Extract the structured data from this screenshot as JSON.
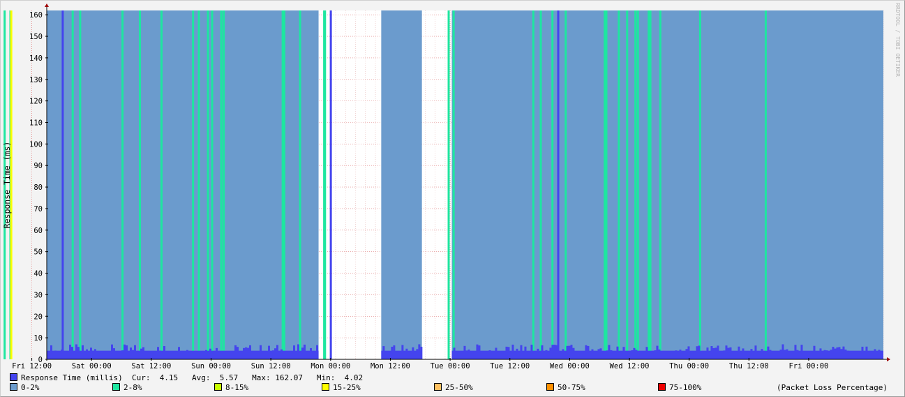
{
  "chart_data": {
    "type": "area",
    "ylabel": "Response Time (ms)",
    "ylim": [
      0,
      162
    ],
    "yticks": [
      0,
      10,
      20,
      30,
      40,
      50,
      60,
      70,
      80,
      90,
      100,
      110,
      120,
      130,
      140,
      150,
      160
    ],
    "x_tick_labels": [
      "Fri 12:00",
      "Sat 00:00",
      "Sat 12:00",
      "Sun 00:00",
      "Sun 12:00",
      "Mon 00:00",
      "Mon 12:00",
      "Tue 00:00",
      "Tue 12:00",
      "Wed 00:00",
      "Wed 12:00",
      "Thu 00:00",
      "Thu 12:00",
      "Fri 00:00"
    ],
    "x_start": "Fri 03:00",
    "x_end": "Fri 00:00",
    "grid": true,
    "data_gaps": [
      {
        "from": "Sun 21:35",
        "to": "Mon 10:10"
      },
      {
        "from": "Mon 18:20",
        "to": "Tue 00:20"
      }
    ],
    "loss_background_color": "#6b9bcd",
    "loss_2_8_times": [
      "Fri 03:30",
      "Fri 06:20",
      "Fri 07:30",
      "Fri 20:00",
      "Fri 21:30",
      "Sat 06:00",
      "Sat 09:30",
      "Sat 13:50",
      "Sat 20:10",
      "Sat 21:20",
      "Sat 23:10",
      "Sun 00:00",
      "Sun 01:50",
      "Sun 02:20",
      "Sun 14:10",
      "Sun 14:30",
      "Sun 17:40",
      "Sun 22:30",
      "Sun 22:40",
      "Mon 23:30",
      "Tue 00:30",
      "Tue 16:30",
      "Tue 18:00",
      "Tue 20:20",
      "Tue 23:00",
      "Wed 06:50",
      "Wed 07:10",
      "Wed 09:40",
      "Wed 11:20",
      "Wed 13:00",
      "Wed 13:30",
      "Wed 15:40",
      "Wed 16:00",
      "Wed 18:00",
      "Thu 02:00",
      "Thu 15:10"
    ],
    "loss_15_25_times": [
      "Fri 07:40"
    ],
    "response_spikes": [
      {
        "time": "Fri 18:00",
        "value": 162.07
      },
      {
        "time": "Sun 23:50",
        "value": 162.07
      },
      {
        "time": "Tue 21:30",
        "value": 162.07
      }
    ],
    "response_baseline_range": [
      4,
      7
    ],
    "series": [
      {
        "name": "Response Time (millis)",
        "color": "#4444ee",
        "cur": "4.15",
        "avg": "5.57",
        "max": "162.07",
        "min": "4.02"
      }
    ]
  },
  "legend": {
    "response": {
      "label": "Response Time (millis)",
      "stats": "Cur:  4.15   Avg:  5.57   Max: 162.07   Min:  4.02",
      "color": "#4444ee"
    },
    "loss_items": [
      {
        "label": "0-2%",
        "color": "#6b9bcd"
      },
      {
        "label": "2-8%",
        "color": "#1ee6a0"
      },
      {
        "label": "8-15%",
        "color": "#c8ff00"
      },
      {
        "label": "15-25%",
        "color": "#ffff00"
      },
      {
        "label": "25-50%",
        "color": "#ffc060"
      },
      {
        "label": "50-75%",
        "color": "#ff9000"
      },
      {
        "label": "75-100%",
        "color": "#ee0000"
      }
    ],
    "loss_note": "(Packet Loss Percentage)"
  },
  "watermark": "RRDTOOL / TOBI OETIKER"
}
